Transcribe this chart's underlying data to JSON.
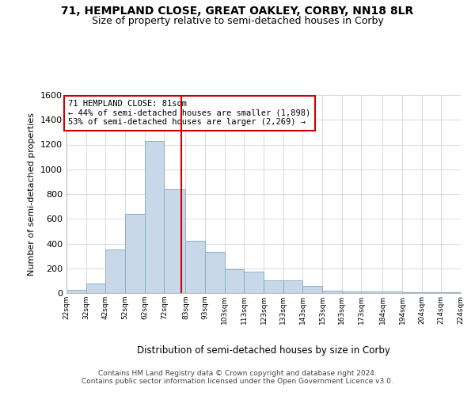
{
  "title_line1": "71, HEMPLAND CLOSE, GREAT OAKLEY, CORBY, NN18 8LR",
  "title_line2": "Size of property relative to semi-detached houses in Corby",
  "xlabel": "Distribution of semi-detached houses by size in Corby",
  "ylabel": "Number of semi-detached properties",
  "footer_line1": "Contains HM Land Registry data © Crown copyright and database right 2024.",
  "footer_line2": "Contains public sector information licensed under the Open Government Licence v3.0.",
  "property_size": 81,
  "annotation_title": "71 HEMPLAND CLOSE: 81sqm",
  "annotation_line2": "← 44% of semi-detached houses are smaller (1,898)",
  "annotation_line3": "53% of semi-detached houses are larger (2,269) →",
  "bar_color": "#c8d8e8",
  "bar_edge_color": "#8aafc8",
  "highlight_line_color": "#cc0000",
  "grid_color": "#cccccc",
  "background_color": "#ffffff",
  "bin_edges": [
    22,
    32,
    42,
    52,
    62,
    72,
    83,
    93,
    103,
    113,
    123,
    133,
    143,
    153,
    163,
    173,
    184,
    194,
    204,
    214,
    224
  ],
  "bin_labels": [
    "22sqm",
    "32sqm",
    "42sqm",
    "52sqm",
    "62sqm",
    "72sqm",
    "83sqm",
    "93sqm",
    "103sqm",
    "113sqm",
    "123sqm",
    "133sqm",
    "143sqm",
    "153sqm",
    "163sqm",
    "173sqm",
    "184sqm",
    "194sqm",
    "204sqm",
    "214sqm",
    "224sqm"
  ],
  "counts": [
    25,
    75,
    350,
    640,
    1230,
    840,
    420,
    330,
    190,
    175,
    100,
    100,
    60,
    20,
    15,
    10,
    10,
    5,
    5,
    5
  ],
  "ylim": [
    0,
    1600
  ],
  "yticks": [
    0,
    200,
    400,
    600,
    800,
    1000,
    1200,
    1400,
    1600
  ]
}
